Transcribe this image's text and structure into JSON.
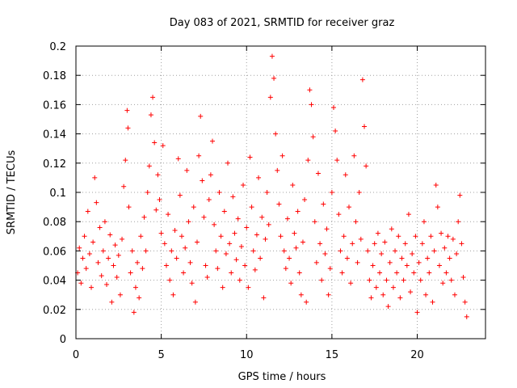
{
  "chart_data": {
    "type": "scatter",
    "title": "Day 083 of 2021, SRMTID for receiver graz",
    "xlabel": "GPS time / hours",
    "ylabel": "SRMTID / TECUs",
    "xlim": [
      0,
      24
    ],
    "ylim": [
      0,
      0.2
    ],
    "xticks": [
      0,
      5,
      10,
      15,
      20
    ],
    "xtick_labels": [
      "0",
      "5",
      "10",
      "15",
      "20"
    ],
    "yticks": [
      0,
      0.02,
      0.04,
      0.06,
      0.08,
      0.1,
      0.12,
      0.14,
      0.16,
      0.18,
      0.2
    ],
    "ytick_labels": [
      "0",
      "0.02",
      "0.04",
      "0.06",
      "0.08",
      "0.1",
      "0.12",
      "0.14",
      "0.16",
      "0.18",
      "0.2"
    ],
    "grid": true,
    "marker": "+",
    "color": "#ff0000",
    "series": [
      {
        "name": "SRMTID",
        "points": [
          [
            0.1,
            0.045
          ],
          [
            0.2,
            0.062
          ],
          [
            0.3,
            0.038
          ],
          [
            0.4,
            0.055
          ],
          [
            0.5,
            0.07
          ],
          [
            0.6,
            0.048
          ],
          [
            0.7,
            0.087
          ],
          [
            0.8,
            0.058
          ],
          [
            0.9,
            0.035
          ],
          [
            1.0,
            0.066
          ],
          [
            1.1,
            0.11
          ],
          [
            1.2,
            0.093
          ],
          [
            1.3,
            0.052
          ],
          [
            1.4,
            0.076
          ],
          [
            1.5,
            0.043
          ],
          [
            1.6,
            0.06
          ],
          [
            1.7,
            0.08
          ],
          [
            1.8,
            0.037
          ],
          [
            1.9,
            0.055
          ],
          [
            2.0,
            0.071
          ],
          [
            2.1,
            0.025
          ],
          [
            2.2,
            0.05
          ],
          [
            2.3,
            0.064
          ],
          [
            2.4,
            0.042
          ],
          [
            2.5,
            0.057
          ],
          [
            2.6,
            0.03
          ],
          [
            2.7,
            0.068
          ],
          [
            2.8,
            0.104
          ],
          [
            2.9,
            0.122
          ],
          [
            3.0,
            0.156
          ],
          [
            3.05,
            0.144
          ],
          [
            3.1,
            0.09
          ],
          [
            3.2,
            0.045
          ],
          [
            3.3,
            0.06
          ],
          [
            3.4,
            0.018
          ],
          [
            3.5,
            0.035
          ],
          [
            3.6,
            0.052
          ],
          [
            3.7,
            0.028
          ],
          [
            3.8,
            0.07
          ],
          [
            3.9,
            0.048
          ],
          [
            4.0,
            0.083
          ],
          [
            4.1,
            0.06
          ],
          [
            4.2,
            0.1
          ],
          [
            4.3,
            0.118
          ],
          [
            4.4,
            0.153
          ],
          [
            4.5,
            0.165
          ],
          [
            4.6,
            0.134
          ],
          [
            4.7,
            0.088
          ],
          [
            4.8,
            0.112
          ],
          [
            4.9,
            0.095
          ],
          [
            5.0,
            0.072
          ],
          [
            5.1,
            0.132
          ],
          [
            5.2,
            0.065
          ],
          [
            5.3,
            0.05
          ],
          [
            5.4,
            0.085
          ],
          [
            5.5,
            0.04
          ],
          [
            5.6,
            0.06
          ],
          [
            5.7,
            0.03
          ],
          [
            5.8,
            0.074
          ],
          [
            5.9,
            0.055
          ],
          [
            6.0,
            0.123
          ],
          [
            6.1,
            0.098
          ],
          [
            6.2,
            0.07
          ],
          [
            6.3,
            0.045
          ],
          [
            6.4,
            0.062
          ],
          [
            6.5,
            0.115
          ],
          [
            6.6,
            0.08
          ],
          [
            6.7,
            0.052
          ],
          [
            6.8,
            0.038
          ],
          [
            6.9,
            0.09
          ],
          [
            7.0,
            0.025
          ],
          [
            7.1,
            0.066
          ],
          [
            7.2,
            0.125
          ],
          [
            7.3,
            0.152
          ],
          [
            7.4,
            0.108
          ],
          [
            7.5,
            0.083
          ],
          [
            7.6,
            0.05
          ],
          [
            7.7,
            0.042
          ],
          [
            7.8,
            0.095
          ],
          [
            7.9,
            0.112
          ],
          [
            8.0,
            0.135
          ],
          [
            8.1,
            0.078
          ],
          [
            8.2,
            0.06
          ],
          [
            8.3,
            0.048
          ],
          [
            8.4,
            0.1
          ],
          [
            8.5,
            0.07
          ],
          [
            8.6,
            0.035
          ],
          [
            8.7,
            0.087
          ],
          [
            8.8,
            0.058
          ],
          [
            8.9,
            0.12
          ],
          [
            9.0,
            0.065
          ],
          [
            9.1,
            0.045
          ],
          [
            9.2,
            0.097
          ],
          [
            9.3,
            0.072
          ],
          [
            9.4,
            0.054
          ],
          [
            9.5,
            0.082
          ],
          [
            9.6,
            0.04
          ],
          [
            9.7,
            0.063
          ],
          [
            9.8,
            0.105
          ],
          [
            9.9,
            0.05
          ],
          [
            10.0,
            0.076
          ],
          [
            10.1,
            0.035
          ],
          [
            10.2,
            0.124
          ],
          [
            10.3,
            0.09
          ],
          [
            10.4,
            0.06
          ],
          [
            10.5,
            0.047
          ],
          [
            10.6,
            0.071
          ],
          [
            10.7,
            0.11
          ],
          [
            10.8,
            0.055
          ],
          [
            10.9,
            0.083
          ],
          [
            11.0,
            0.028
          ],
          [
            11.1,
            0.068
          ],
          [
            11.2,
            0.1
          ],
          [
            11.3,
            0.078
          ],
          [
            11.4,
            0.165
          ],
          [
            11.5,
            0.193
          ],
          [
            11.6,
            0.178
          ],
          [
            11.7,
            0.14
          ],
          [
            11.8,
            0.115
          ],
          [
            11.9,
            0.092
          ],
          [
            12.0,
            0.07
          ],
          [
            12.1,
            0.125
          ],
          [
            12.2,
            0.06
          ],
          [
            12.3,
            0.048
          ],
          [
            12.4,
            0.082
          ],
          [
            12.5,
            0.055
          ],
          [
            12.6,
            0.038
          ],
          [
            12.7,
            0.105
          ],
          [
            12.8,
            0.072
          ],
          [
            12.9,
            0.062
          ],
          [
            13.0,
            0.087
          ],
          [
            13.1,
            0.045
          ],
          [
            13.2,
            0.03
          ],
          [
            13.3,
            0.066
          ],
          [
            13.4,
            0.095
          ],
          [
            13.5,
            0.025
          ],
          [
            13.6,
            0.122
          ],
          [
            13.7,
            0.17
          ],
          [
            13.8,
            0.16
          ],
          [
            13.9,
            0.138
          ],
          [
            14.0,
            0.08
          ],
          [
            14.1,
            0.052
          ],
          [
            14.2,
            0.113
          ],
          [
            14.3,
            0.065
          ],
          [
            14.4,
            0.04
          ],
          [
            14.5,
            0.092
          ],
          [
            14.6,
            0.058
          ],
          [
            14.7,
            0.075
          ],
          [
            14.8,
            0.03
          ],
          [
            14.9,
            0.048
          ],
          [
            15.0,
            0.1
          ],
          [
            15.1,
            0.158
          ],
          [
            15.2,
            0.142
          ],
          [
            15.3,
            0.122
          ],
          [
            15.4,
            0.085
          ],
          [
            15.5,
            0.06
          ],
          [
            15.6,
            0.045
          ],
          [
            15.7,
            0.07
          ],
          [
            15.8,
            0.112
          ],
          [
            15.9,
            0.055
          ],
          [
            16.0,
            0.09
          ],
          [
            16.1,
            0.038
          ],
          [
            16.2,
            0.065
          ],
          [
            16.3,
            0.125
          ],
          [
            16.4,
            0.08
          ],
          [
            16.5,
            0.052
          ],
          [
            16.6,
            0.1
          ],
          [
            16.7,
            0.068
          ],
          [
            16.8,
            0.177
          ],
          [
            16.9,
            0.145
          ],
          [
            17.0,
            0.118
          ],
          [
            17.1,
            0.06
          ],
          [
            17.2,
            0.04
          ],
          [
            17.3,
            0.028
          ],
          [
            17.4,
            0.05
          ],
          [
            17.5,
            0.065
          ],
          [
            17.6,
            0.035
          ],
          [
            17.7,
            0.072
          ],
          [
            17.8,
            0.045
          ],
          [
            17.9,
            0.058
          ],
          [
            18.0,
            0.03
          ],
          [
            18.1,
            0.066
          ],
          [
            18.2,
            0.04
          ],
          [
            18.3,
            0.022
          ],
          [
            18.4,
            0.052
          ],
          [
            18.5,
            0.075
          ],
          [
            18.6,
            0.035
          ],
          [
            18.7,
            0.06
          ],
          [
            18.8,
            0.045
          ],
          [
            18.9,
            0.07
          ],
          [
            19.0,
            0.028
          ],
          [
            19.1,
            0.055
          ],
          [
            19.2,
            0.04
          ],
          [
            19.3,
            0.065
          ],
          [
            19.4,
            0.05
          ],
          [
            19.5,
            0.085
          ],
          [
            19.6,
            0.032
          ],
          [
            19.7,
            0.058
          ],
          [
            19.8,
            0.045
          ],
          [
            19.9,
            0.07
          ],
          [
            20.0,
            0.018
          ],
          [
            20.1,
            0.052
          ],
          [
            20.2,
            0.04
          ],
          [
            20.3,
            0.065
          ],
          [
            20.4,
            0.08
          ],
          [
            20.5,
            0.03
          ],
          [
            20.6,
            0.055
          ],
          [
            20.7,
            0.045
          ],
          [
            20.8,
            0.07
          ],
          [
            20.9,
            0.025
          ],
          [
            21.0,
            0.06
          ],
          [
            21.1,
            0.105
          ],
          [
            21.2,
            0.09
          ],
          [
            21.3,
            0.05
          ],
          [
            21.4,
            0.072
          ],
          [
            21.5,
            0.038
          ],
          [
            21.6,
            0.062
          ],
          [
            21.7,
            0.045
          ],
          [
            21.8,
            0.07
          ],
          [
            21.9,
            0.055
          ],
          [
            22.0,
            0.04
          ],
          [
            22.1,
            0.068
          ],
          [
            22.2,
            0.03
          ],
          [
            22.3,
            0.058
          ],
          [
            22.4,
            0.08
          ],
          [
            22.5,
            0.098
          ],
          [
            22.6,
            0.065
          ],
          [
            22.7,
            0.042
          ],
          [
            22.8,
            0.025
          ],
          [
            22.9,
            0.015
          ]
        ]
      }
    ]
  }
}
